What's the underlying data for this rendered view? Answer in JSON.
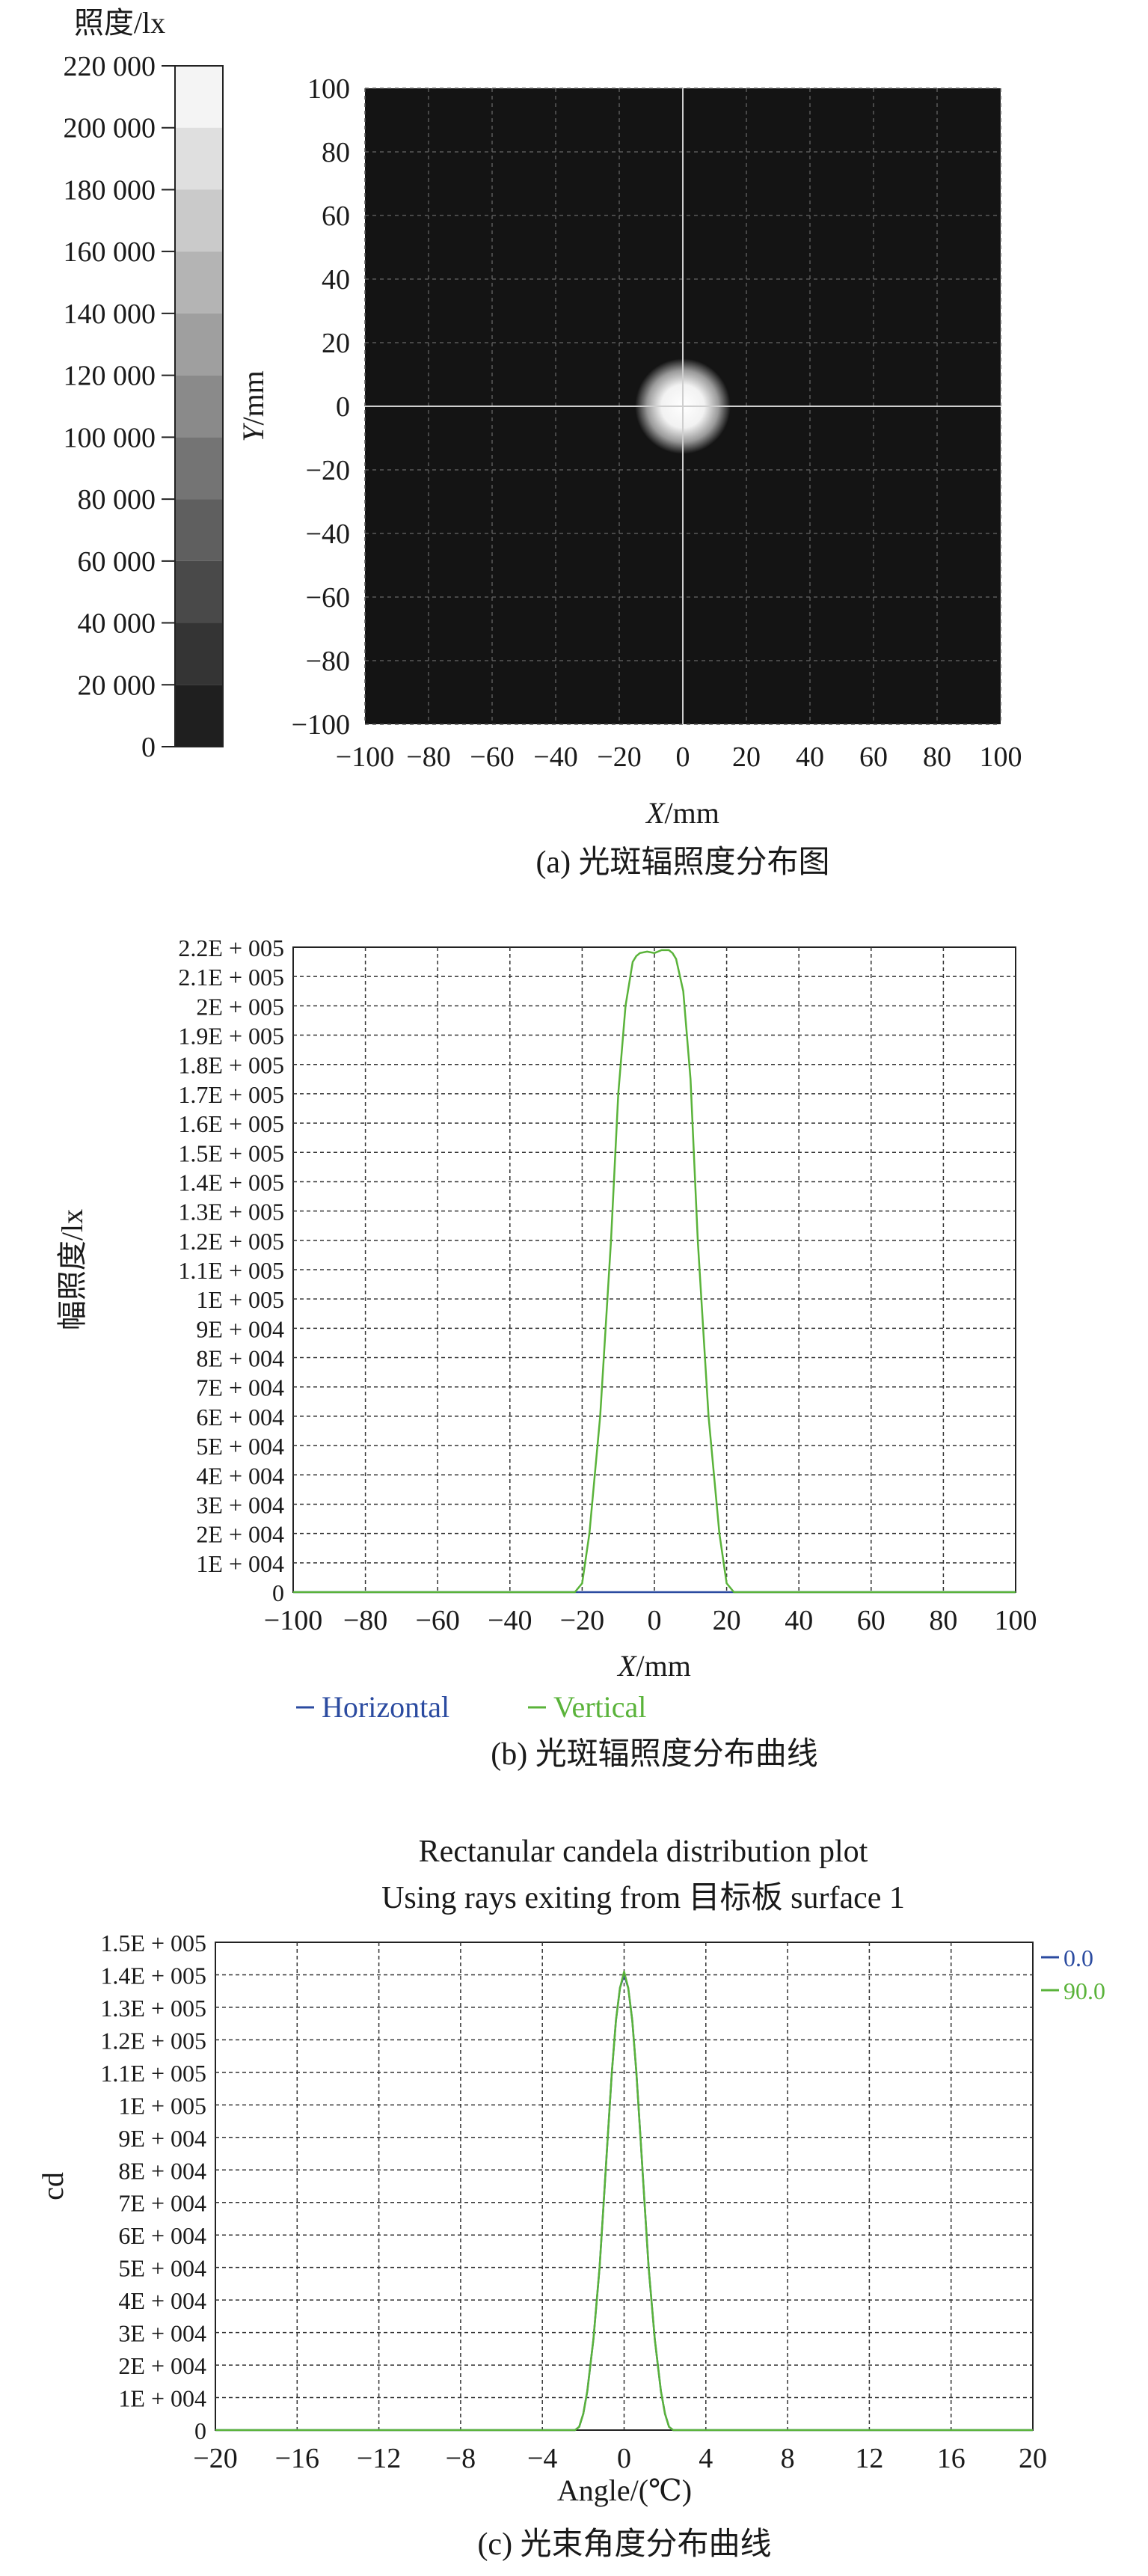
{
  "chart_data": [
    {
      "type": "heatmap",
      "colorbar": {
        "title": "照度/lx",
        "ticks": [
          "220 000",
          "200 000",
          "180 000",
          "160 000",
          "140 000",
          "120 000",
          "100 000",
          "80 000",
          "60 000",
          "40 000",
          "20 000",
          "0"
        ],
        "values": [
          220000,
          200000,
          180000,
          160000,
          140000,
          120000,
          100000,
          80000,
          60000,
          40000,
          20000,
          0
        ]
      },
      "xlabel": {
        "italic": "X",
        "unit": "/mm"
      },
      "ylabel": {
        "italic": "Y",
        "unit": "/mm"
      },
      "xlim": [
        -100,
        100
      ],
      "ylim": [
        -100,
        100
      ],
      "xticks": [
        "−100",
        "−80",
        "−60",
        "−40",
        "−20",
        "0",
        "20",
        "40",
        "60",
        "80",
        "100"
      ],
      "yticks": [
        "100",
        "80",
        "60",
        "40",
        "20",
        "0",
        "−20",
        "−40",
        "−60",
        "−80",
        "−100"
      ],
      "spot": {
        "center": [
          0,
          0
        ],
        "halfwidth": 15,
        "peak": 220000
      },
      "grid": true,
      "caption": "(a) 光斑辐照度分布图"
    },
    {
      "type": "line",
      "ylabel": "幅照度/lx",
      "xlabel": {
        "italic": "X",
        "unit": "/mm"
      },
      "xlim": [
        -100,
        100
      ],
      "ylim": [
        0,
        220000
      ],
      "xticks": [
        "−100",
        "−80",
        "−60",
        "−40",
        "−20",
        "0",
        "20",
        "40",
        "60",
        "80",
        "100"
      ],
      "yticks": [
        "2.2E + 005",
        "2.1E + 005",
        "2E + 005",
        "1.9E + 005",
        "1.8E + 005",
        "1.7E + 005",
        "1.6E + 005",
        "1.5E + 005",
        "1.4E + 005",
        "1.3E + 005",
        "1.2E + 005",
        "1.1E + 005",
        "1E + 005",
        "9E + 004",
        "8E + 004",
        "7E + 004",
        "6E + 004",
        "5E + 004",
        "4E + 004",
        "3E + 004",
        "2E + 004",
        "1E + 004",
        "0"
      ],
      "ytick_values": [
        220000,
        210000,
        200000,
        190000,
        180000,
        170000,
        160000,
        150000,
        140000,
        130000,
        120000,
        110000,
        100000,
        90000,
        80000,
        70000,
        60000,
        50000,
        40000,
        30000,
        20000,
        10000,
        0
      ],
      "series": [
        {
          "name": "Horizontal",
          "color": "#2b4ba0",
          "x": [
            -100,
            -22,
            -20,
            -18,
            -15,
            -12,
            -10,
            -8,
            -6,
            -4,
            -2,
            0,
            2,
            4,
            6,
            8,
            10,
            12,
            15,
            18,
            20,
            22,
            100
          ],
          "y": [
            0,
            0,
            0,
            0,
            0,
            0,
            0,
            0,
            0,
            0,
            0,
            0,
            0,
            0,
            0,
            0,
            0,
            0,
            0,
            0,
            0,
            0,
            0
          ]
        },
        {
          "name": "Vertical",
          "color": "#5ab33a",
          "x": [
            -100,
            -22,
            -20,
            -18,
            -15,
            -12,
            -10,
            -8,
            -6,
            -5,
            -4,
            -2,
            0,
            2,
            4,
            5,
            6,
            8,
            10,
            12,
            15,
            18,
            20,
            22,
            100
          ],
          "y": [
            0,
            0,
            3000,
            20000,
            60000,
            120000,
            170000,
            200000,
            215000,
            217000,
            218000,
            218500,
            218000,
            219000,
            219000,
            218000,
            216000,
            205000,
            175000,
            120000,
            60000,
            20000,
            3000,
            0,
            0
          ]
        }
      ],
      "grid": true,
      "legend": "bottom",
      "caption": "(b) 光斑辐照度分布曲线"
    },
    {
      "type": "line",
      "title": "Rectanular candela distribution plot",
      "subtitle": "Using rays exiting from 目标板 surface 1",
      "ylabel": "cd",
      "xlabel": "Angle/(℃)",
      "xlim": [
        -20,
        20
      ],
      "ylim": [
        0,
        150000
      ],
      "xticks": [
        "−20",
        "−16",
        "−12",
        "−8",
        "−4",
        "0",
        "4",
        "8",
        "12",
        "16",
        "20"
      ],
      "yticks": [
        "1.5E + 005",
        "1.4E + 005",
        "1.3E + 005",
        "1.2E + 005",
        "1.1E + 005",
        "1E + 005",
        "9E + 004",
        "8E + 004",
        "7E + 004",
        "6E + 004",
        "5E + 004",
        "4E + 004",
        "3E + 004",
        "2E + 004",
        "1E + 004",
        "0"
      ],
      "ytick_values": [
        150000,
        140000,
        130000,
        120000,
        110000,
        100000,
        90000,
        80000,
        70000,
        60000,
        50000,
        40000,
        30000,
        20000,
        10000,
        0
      ],
      "series": [
        {
          "name": "0.0",
          "color": "#2b4ba0",
          "x": [
            -20,
            -2.4,
            -2.2,
            -2,
            -1.8,
            -1.5,
            -1.2,
            -1,
            -0.8,
            -0.6,
            -0.4,
            -0.2,
            0,
            0.2,
            0.4,
            0.6,
            0.8,
            1,
            1.2,
            1.5,
            1.8,
            2,
            2.2,
            2.4,
            20
          ],
          "y": [
            0,
            0,
            1000,
            5000,
            12000,
            28000,
            50000,
            70000,
            90000,
            110000,
            126000,
            136000,
            140000,
            136000,
            126000,
            110000,
            90000,
            70000,
            50000,
            28000,
            12000,
            5000,
            1000,
            0,
            0
          ]
        },
        {
          "name": "90.0",
          "color": "#5ab33a",
          "x": [
            -20,
            -2.4,
            -2.2,
            -2,
            -1.8,
            -1.5,
            -1.2,
            -1,
            -0.8,
            -0.6,
            -0.4,
            -0.2,
            0,
            0.2,
            0.4,
            0.6,
            0.8,
            1,
            1.2,
            1.5,
            1.8,
            2,
            2.2,
            2.4,
            20
          ],
          "y": [
            0,
            0,
            1000,
            5000,
            12000,
            28000,
            50000,
            70000,
            90000,
            110000,
            126000,
            136000,
            141000,
            136000,
            126000,
            110000,
            90000,
            70000,
            50000,
            28000,
            12000,
            5000,
            1000,
            0,
            0
          ]
        }
      ],
      "grid": true,
      "legend": "top-right",
      "caption": "(c) 光束角度分布曲线"
    }
  ]
}
